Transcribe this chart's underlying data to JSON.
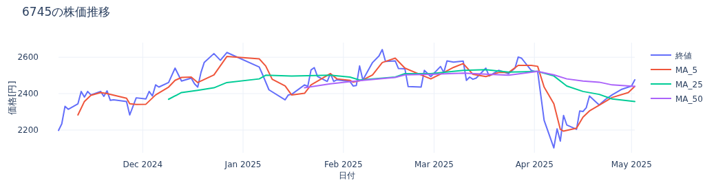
{
  "chart_data": {
    "type": "line",
    "title": "6745の株価推移",
    "xlabel": "日付",
    "ylabel": "価格[円]",
    "grid": true,
    "legend": "top right",
    "marker": "none",
    "line_style": "solid",
    "xlim": [
      "2024-11-05",
      "2025-05-02"
    ],
    "ylim": [
      2075,
      2680
    ],
    "yticks": [
      2200,
      2400,
      2600
    ],
    "xticks": [
      {
        "value": "2024-12-01",
        "label": "Dec 2024"
      },
      {
        "value": "2025-01-01",
        "label": "Jan 2025"
      },
      {
        "value": "2025-02-01",
        "label": "Feb 2025"
      },
      {
        "value": "2025-03-01",
        "label": "Mar 2025"
      },
      {
        "value": "2025-04-01",
        "label": "Apr 2025"
      },
      {
        "value": "2025-05-01",
        "label": "May 2025"
      }
    ],
    "series": [
      {
        "name": "終値",
        "color": "#636efa",
        "x": [
          "2024-11-05",
          "2024-11-06",
          "2024-11-07",
          "2024-11-08",
          "2024-11-11",
          "2024-11-12",
          "2024-11-13",
          "2024-11-14",
          "2024-11-15",
          "2024-11-18",
          "2024-11-19",
          "2024-11-20",
          "2024-11-21",
          "2024-11-22",
          "2024-11-26",
          "2024-11-27",
          "2024-11-29",
          "2024-12-02",
          "2024-12-03",
          "2024-12-04",
          "2024-12-05",
          "2024-12-06",
          "2024-12-09",
          "2024-12-11",
          "2024-12-13",
          "2024-12-16",
          "2024-12-17",
          "2024-12-18",
          "2024-12-19",
          "2024-12-20",
          "2024-12-23",
          "2024-12-25",
          "2024-12-27",
          "2025-01-06",
          "2025-01-07",
          "2025-01-09",
          "2025-01-14",
          "2025-01-15",
          "2025-01-16",
          "2025-01-20",
          "2025-01-21",
          "2025-01-22",
          "2025-01-23",
          "2025-01-24",
          "2025-01-27",
          "2025-01-28",
          "2025-01-29",
          "2025-01-30",
          "2025-02-03",
          "2025-02-04",
          "2025-02-05",
          "2025-02-06",
          "2025-02-07",
          "2025-02-10",
          "2025-02-12",
          "2025-02-13",
          "2025-02-14",
          "2025-02-17",
          "2025-02-18",
          "2025-02-20",
          "2025-02-21",
          "2025-02-25",
          "2025-02-26",
          "2025-02-28",
          "2025-03-03",
          "2025-03-04",
          "2025-03-05",
          "2025-03-07",
          "2025-03-10",
          "2025-03-11",
          "2025-03-12",
          "2025-03-13",
          "2025-03-14",
          "2025-03-17",
          "2025-03-18",
          "2025-03-21",
          "2025-03-24",
          "2025-03-26",
          "2025-03-27",
          "2025-03-28",
          "2025-03-31",
          "2025-04-01",
          "2025-04-02",
          "2025-04-04",
          "2025-04-07",
          "2025-04-08",
          "2025-04-09",
          "2025-04-10",
          "2025-04-11",
          "2025-04-14",
          "2025-04-15",
          "2025-04-16",
          "2025-04-17",
          "2025-04-18",
          "2025-04-21",
          "2025-04-23",
          "2025-04-25",
          "2025-04-28",
          "2025-05-01",
          "2025-05-02"
        ],
        "values": [
          2198,
          2234,
          2330,
          2314,
          2344,
          2412,
          2381,
          2412,
          2393,
          2412,
          2385,
          2415,
          2363,
          2366,
          2357,
          2283,
          2377,
          2371,
          2412,
          2387,
          2448,
          2436,
          2461,
          2540,
          2469,
          2485,
          2454,
          2436,
          2516,
          2571,
          2620,
          2583,
          2626,
          2546,
          2506,
          2421,
          2366,
          2393,
          2396,
          2448,
          2440,
          2530,
          2543,
          2494,
          2467,
          2510,
          2467,
          2476,
          2467,
          2442,
          2445,
          2552,
          2475,
          2571,
          2607,
          2642,
          2577,
          2580,
          2538,
          2536,
          2439,
          2436,
          2528,
          2494,
          2549,
          2516,
          2580,
          2573,
          2579,
          2473,
          2491,
          2479,
          2485,
          2540,
          2497,
          2528,
          2510,
          2540,
          2601,
          2595,
          2528,
          2522,
          2522,
          2253,
          2102,
          2206,
          2139,
          2280,
          2228,
          2204,
          2305,
          2302,
          2322,
          2387,
          2338,
          2369,
          2393,
          2424,
          2442,
          2476
        ]
      },
      {
        "name": "MA_5",
        "color": "#ef553b",
        "x": [
          "2024-11-11",
          "2024-11-13",
          "2024-11-15",
          "2024-11-18",
          "2024-11-20",
          "2024-11-26",
          "2024-11-27",
          "2024-11-29",
          "2024-12-02",
          "2024-12-05",
          "2024-12-09",
          "2024-12-11",
          "2024-12-13",
          "2024-12-16",
          "2024-12-18",
          "2024-12-23",
          "2024-12-27",
          "2025-01-06",
          "2025-01-08",
          "2025-01-10",
          "2025-01-14",
          "2025-01-16",
          "2025-01-20",
          "2025-01-22",
          "2025-01-28",
          "2025-01-30",
          "2025-02-03",
          "2025-02-04",
          "2025-02-07",
          "2025-02-10",
          "2025-02-13",
          "2025-02-17",
          "2025-02-20",
          "2025-02-25",
          "2025-02-28",
          "2025-03-04",
          "2025-03-07",
          "2025-03-10",
          "2025-03-13",
          "2025-03-17",
          "2025-03-21",
          "2025-03-24",
          "2025-03-27",
          "2025-03-31",
          "2025-04-02",
          "2025-04-04",
          "2025-04-07",
          "2025-04-09",
          "2025-04-10",
          "2025-04-14",
          "2025-04-16",
          "2025-04-18",
          "2025-04-21",
          "2025-04-25",
          "2025-04-30",
          "2025-05-02"
        ],
        "values": [
          2283,
          2357,
          2391,
          2406,
          2400,
          2375,
          2344,
          2341,
          2342,
          2393,
          2436,
          2473,
          2489,
          2491,
          2461,
          2503,
          2604,
          2591,
          2552,
          2479,
          2442,
          2393,
          2402,
          2448,
          2510,
          2481,
          2473,
          2463,
          2475,
          2503,
          2571,
          2595,
          2540,
          2503,
          2481,
          2516,
          2544,
          2565,
          2506,
          2494,
          2516,
          2516,
          2555,
          2555,
          2550,
          2436,
          2344,
          2204,
          2194,
          2210,
          2271,
          2305,
          2336,
          2379,
          2406,
          2440
        ]
      },
      {
        "name": "MA_25",
        "color": "#00cc96",
        "x": [
          "2024-12-09",
          "2024-12-13",
          "2024-12-18",
          "2024-12-23",
          "2024-12-27",
          "2025-01-06",
          "2025-01-08",
          "2025-01-16",
          "2025-01-28",
          "2025-02-03",
          "2025-02-06",
          "2025-02-17",
          "2025-02-20",
          "2025-02-28",
          "2025-03-10",
          "2025-03-17",
          "2025-03-24",
          "2025-04-02",
          "2025-04-07",
          "2025-04-11",
          "2025-04-16",
          "2025-04-21",
          "2025-04-25",
          "2025-05-02"
        ],
        "values": [
          2369,
          2406,
          2418,
          2432,
          2461,
          2481,
          2501,
          2497,
          2501,
          2491,
          2475,
          2491,
          2510,
          2510,
          2528,
          2532,
          2518,
          2522,
          2497,
          2442,
          2412,
          2396,
          2371,
          2357
        ]
      },
      {
        "name": "MA_50",
        "color": "#ab63fa",
        "x": [
          "2025-01-20",
          "2025-01-28",
          "2025-02-07",
          "2025-02-17",
          "2025-02-20",
          "2025-02-28",
          "2025-03-10",
          "2025-03-24",
          "2025-04-02",
          "2025-04-07",
          "2025-04-11",
          "2025-04-16",
          "2025-04-21",
          "2025-04-25",
          "2025-05-02"
        ],
        "values": [
          2432,
          2454,
          2473,
          2489,
          2503,
          2506,
          2513,
          2501,
          2522,
          2503,
          2481,
          2469,
          2463,
          2448,
          2440
        ]
      }
    ]
  }
}
